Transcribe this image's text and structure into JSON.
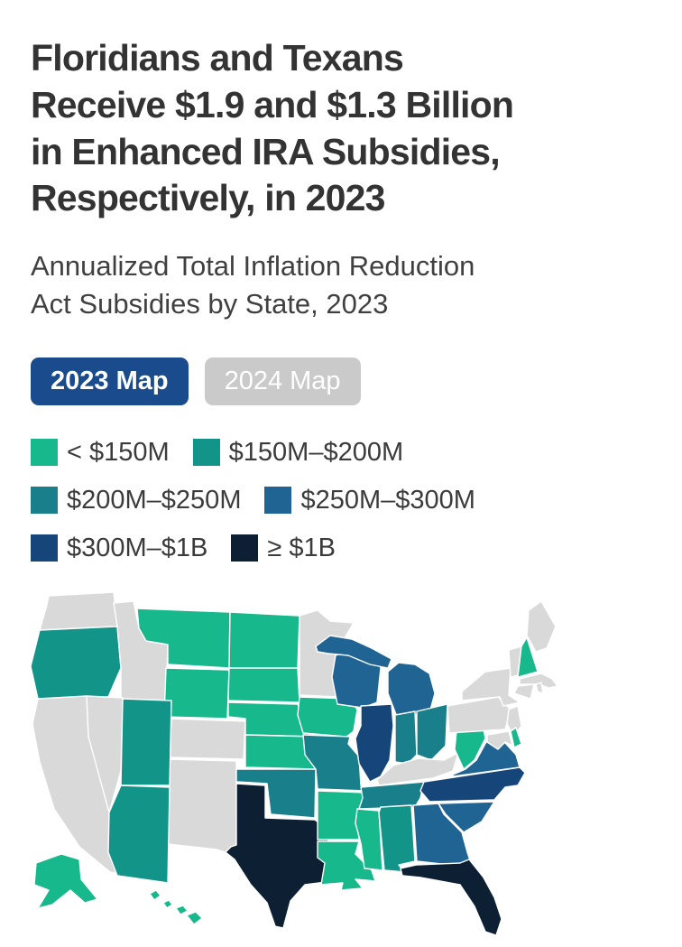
{
  "title": {
    "lines": [
      "Floridians and Texans",
      "Receive $1.9 and $1.3 Billion",
      "in Enhanced IRA Subsidies,",
      "Respectively, in 2023"
    ]
  },
  "subtitle": {
    "lines": [
      "Annualized Total Inflation Reduction",
      "Act Subsidies by State, 2023"
    ]
  },
  "toggle": {
    "buttons": [
      {
        "label": "2023 Map",
        "active": true
      },
      {
        "label": "2024 Map",
        "active": false
      }
    ],
    "active_bg": "#1a4c8d",
    "active_text": "#ffffff",
    "inactive_bg": "#cacaca",
    "inactive_text": "#ffffff"
  },
  "chart_data": {
    "type": "choropleth",
    "geography": "United States",
    "title": "Floridians and Texans Receive $1.9 and $1.3 Billion in Enhanced IRA Subsidies, Respectively, in 2023",
    "subtitle": "Annualized Total Inflation Reduction Act Subsidies by State, 2023",
    "year_shown": "2023",
    "highlights": {
      "Florida": "$1.9 Billion",
      "Texas": "$1.3 Billion"
    },
    "categories": [
      {
        "label": "< $150M",
        "color": "#16b88c"
      },
      {
        "label": "$150M–$200M",
        "color": "#129488"
      },
      {
        "label": "$200M–$250M",
        "color": "#197f8b"
      },
      {
        "label": "$250M–$300M",
        "color": "#1f6492"
      },
      {
        "label": "$300M–$1B",
        "color": "#164679"
      },
      {
        "label": "≥ $1B",
        "color": "#0c1f33"
      }
    ],
    "no_data_color": "#d9d9d9",
    "states": [
      {
        "abbr": "WA",
        "name": "Washington",
        "category": null
      },
      {
        "abbr": "OR",
        "name": "Oregon",
        "category": 1
      },
      {
        "abbr": "CA",
        "name": "California",
        "category": null
      },
      {
        "abbr": "ID",
        "name": "Idaho",
        "category": null
      },
      {
        "abbr": "NV",
        "name": "Nevada",
        "category": null
      },
      {
        "abbr": "MT",
        "name": "Montana",
        "category": 0
      },
      {
        "abbr": "WY",
        "name": "Wyoming",
        "category": 0
      },
      {
        "abbr": "CO",
        "name": "Colorado",
        "category": null
      },
      {
        "abbr": "NM",
        "name": "New Mexico",
        "category": null
      },
      {
        "abbr": "UT",
        "name": "Utah",
        "category": 1
      },
      {
        "abbr": "AZ",
        "name": "Arizona",
        "category": 1
      },
      {
        "abbr": "ND",
        "name": "North Dakota",
        "category": 0
      },
      {
        "abbr": "SD",
        "name": "South Dakota",
        "category": 0
      },
      {
        "abbr": "NE",
        "name": "Nebraska",
        "category": 0
      },
      {
        "abbr": "KS",
        "name": "Kansas",
        "category": 0
      },
      {
        "abbr": "OK",
        "name": "Oklahoma",
        "category": 2
      },
      {
        "abbr": "TX",
        "name": "Texas",
        "category": 5
      },
      {
        "abbr": "MN",
        "name": "Minnesota",
        "category": null
      },
      {
        "abbr": "IA",
        "name": "Iowa",
        "category": 0
      },
      {
        "abbr": "MO",
        "name": "Missouri",
        "category": 2
      },
      {
        "abbr": "AR",
        "name": "Arkansas",
        "category": 0
      },
      {
        "abbr": "LA",
        "name": "Louisiana",
        "category": 0
      },
      {
        "abbr": "WI",
        "name": "Wisconsin",
        "category": 3
      },
      {
        "abbr": "IL",
        "name": "Illinois",
        "category": 4
      },
      {
        "abbr": "MI",
        "name": "Michigan",
        "category": 3
      },
      {
        "abbr": "IN",
        "name": "Indiana",
        "category": 2
      },
      {
        "abbr": "OH",
        "name": "Ohio",
        "category": 2
      },
      {
        "abbr": "KY",
        "name": "Kentucky",
        "category": null
      },
      {
        "abbr": "TN",
        "name": "Tennessee",
        "category": 2
      },
      {
        "abbr": "MS",
        "name": "Mississippi",
        "category": 0
      },
      {
        "abbr": "AL",
        "name": "Alabama",
        "category": 1
      },
      {
        "abbr": "GA",
        "name": "Georgia",
        "category": 3
      },
      {
        "abbr": "SC",
        "name": "South Carolina",
        "category": 3
      },
      {
        "abbr": "VA",
        "name": "Virginia",
        "category": 3
      },
      {
        "abbr": "NC",
        "name": "North Carolina",
        "category": 4
      },
      {
        "abbr": "WV",
        "name": "West Virginia",
        "category": 0
      },
      {
        "abbr": "FL",
        "name": "Florida",
        "category": 5
      },
      {
        "abbr": "PA",
        "name": "Pennsylvania",
        "category": null
      },
      {
        "abbr": "NY",
        "name": "New York",
        "category": null
      },
      {
        "abbr": "NJ",
        "name": "New Jersey",
        "category": null
      },
      {
        "abbr": "MD",
        "name": "Maryland",
        "category": null
      },
      {
        "abbr": "DE",
        "name": "Delaware",
        "category": 0
      },
      {
        "abbr": "VT",
        "name": "Vermont",
        "category": null
      },
      {
        "abbr": "NH",
        "name": "New Hampshire",
        "category": 0
      },
      {
        "abbr": "ME",
        "name": "Maine",
        "category": null
      },
      {
        "abbr": "MA",
        "name": "Massachusetts",
        "category": null
      },
      {
        "abbr": "CT",
        "name": "Connecticut",
        "category": null
      },
      {
        "abbr": "RI",
        "name": "Rhode Island",
        "category": null
      },
      {
        "abbr": "AK",
        "name": "Alaska",
        "category": 0
      },
      {
        "abbr": "HI",
        "name": "Hawaii",
        "category": 0
      }
    ]
  }
}
